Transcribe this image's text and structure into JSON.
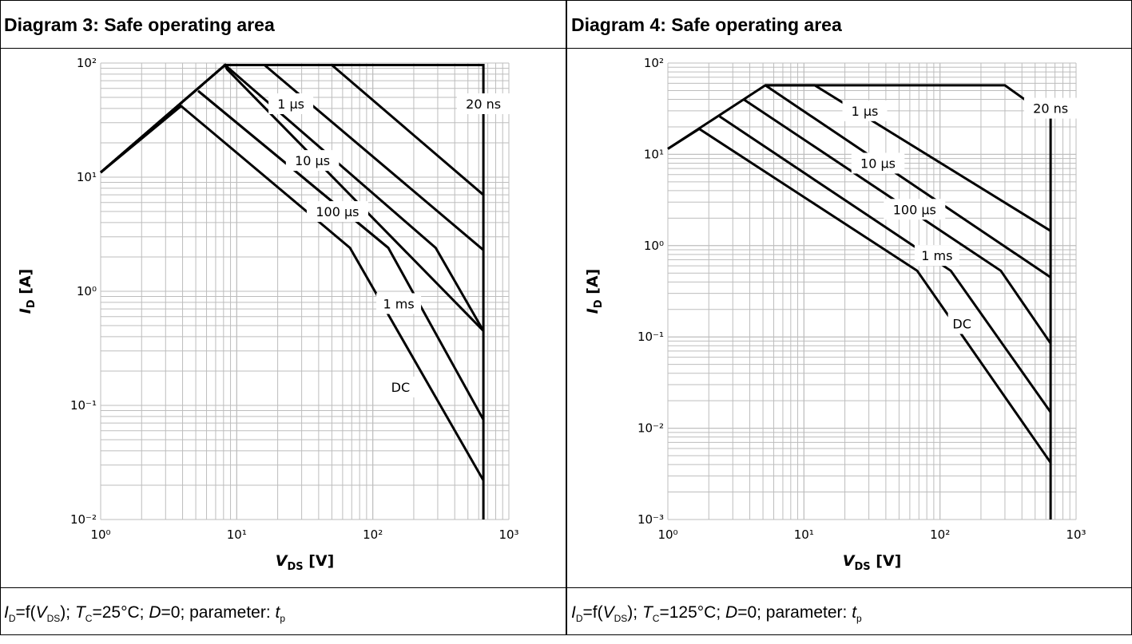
{
  "panels": [
    {
      "title": "Diagram 3: Safe operating area",
      "caption": {
        "id_sub": "D",
        "vds_sub": "DS",
        "tc_sub": "C",
        "tc_value": "=25°C; ",
        "param_sub": "p"
      },
      "chart_data": {
        "type": "line",
        "title": "Diagram 3: Safe operating area",
        "xscale": "log",
        "yscale": "log",
        "xlim": [
          1,
          1000
        ],
        "ylim": [
          0.01,
          100
        ],
        "xticks": [
          1,
          10,
          100,
          1000
        ],
        "yticks": [
          0.01,
          0.1,
          1,
          10,
          100
        ],
        "grid": true,
        "xlabel": {
          "main": "V",
          "sub": "DS",
          "unit": " [V]"
        },
        "ylabel": {
          "main": "I",
          "sub": "D",
          "unit": " [A]"
        },
        "series": [
          {
            "name": "20 ns",
            "points": [
              [
                1,
                11
              ],
              [
                8.2,
                96
              ],
              [
                650,
                96
              ],
              [
                650,
                0.01
              ]
            ]
          },
          {
            "name": "1 µs",
            "points": [
              [
                1,
                11
              ],
              [
                8.2,
                96
              ],
              [
                50,
                96
              ],
              [
                650,
                7
              ]
            ]
          },
          {
            "name": "10 µs",
            "points": [
              [
                1,
                11
              ],
              [
                8.2,
                96
              ],
              [
                16,
                96
              ],
              [
                650,
                2.3
              ]
            ]
          },
          {
            "name": "100 µs",
            "points": [
              [
                1,
                11
              ],
              [
                8.2,
                96
              ],
              [
                8.5,
                88
              ],
              [
                650,
                0.45
              ]
            ]
          },
          {
            "name": "1 ms",
            "points": [
              [
                5.2,
                57
              ],
              [
                130,
                2.4
              ],
              [
                650,
                0.075
              ]
            ]
          },
          {
            "name": "DC",
            "points": [
              [
                1,
                11
              ],
              [
                3.9,
                42
              ],
              [
                68,
                2.4
              ],
              [
                650,
                0.022
              ]
            ]
          },
          {
            "name": "",
            "points": [
              [
                5.2,
                57
              ],
              [
                130,
                2.4
              ]
            ]
          },
          {
            "name": "",
            "points": [
              [
                8.2,
                96
              ],
              [
                290,
                2.4
              ],
              [
                650,
                0.45
              ]
            ]
          }
        ],
        "labels": [
          {
            "text": "20 ns",
            "x": 650,
            "y": 44
          },
          {
            "text": "1 µs",
            "x": 25,
            "y": 44
          },
          {
            "text": "10 µs",
            "x": 36,
            "y": 14
          },
          {
            "text": "100 µs",
            "x": 55,
            "y": 5
          },
          {
            "text": "1 ms",
            "x": 155,
            "y": 0.78
          },
          {
            "text": "DC",
            "x": 160,
            "y": 0.145
          }
        ]
      }
    },
    {
      "title": "Diagram 4: Safe operating area",
      "caption": {
        "id_sub": "D",
        "vds_sub": "DS",
        "tc_sub": "C",
        "tc_value": "=125°C; ",
        "param_sub": "p"
      },
      "chart_data": {
        "type": "line",
        "title": "Diagram 4: Safe operating area",
        "xscale": "log",
        "yscale": "log",
        "xlim": [
          1,
          1000
        ],
        "ylim": [
          0.001,
          100
        ],
        "xticks": [
          1,
          10,
          100,
          1000
        ],
        "yticks": [
          0.001,
          0.01,
          0.1,
          1,
          10,
          100
        ],
        "grid": true,
        "xlabel": {
          "main": "V",
          "sub": "DS",
          "unit": " [V]"
        },
        "ylabel": {
          "main": "I",
          "sub": "D",
          "unit": " [A]"
        },
        "series": [
          {
            "name": "20 ns",
            "points": [
              [
                1,
                11.5
              ],
              [
                5.2,
                57
              ],
              [
                300,
                57
              ],
              [
                650,
                25
              ],
              [
                650,
                0.001
              ]
            ]
          },
          {
            "name": "1 µs",
            "points": [
              [
                5.2,
                57
              ],
              [
                12,
                57
              ],
              [
                650,
                1.45
              ]
            ]
          },
          {
            "name": "10 µs",
            "points": [
              [
                5.2,
                57
              ],
              [
                650,
                0.45
              ]
            ]
          },
          {
            "name": "100 µs",
            "points": [
              [
                3.6,
                40
              ],
              [
                280,
                0.53
              ],
              [
                650,
                0.085
              ]
            ]
          },
          {
            "name": "1 ms",
            "points": [
              [
                2.4,
                26
              ],
              [
                120,
                0.53
              ],
              [
                650,
                0.015
              ]
            ]
          },
          {
            "name": "DC",
            "points": [
              [
                1.7,
                19
              ],
              [
                68,
                0.53
              ],
              [
                650,
                0.0042
              ]
            ]
          },
          {
            "name": "",
            "points": [
              [
                1,
                11.5
              ],
              [
                1.7,
                19
              ]
            ]
          }
        ],
        "labels": [
          {
            "text": "20 ns",
            "x": 650,
            "y": 32
          },
          {
            "text": "1 µs",
            "x": 28,
            "y": 30
          },
          {
            "text": "10 µs",
            "x": 35,
            "y": 8
          },
          {
            "text": "100 µs",
            "x": 65,
            "y": 2.5
          },
          {
            "text": "1 ms",
            "x": 95,
            "y": 0.78
          },
          {
            "text": "DC",
            "x": 145,
            "y": 0.14
          }
        ]
      }
    }
  ]
}
